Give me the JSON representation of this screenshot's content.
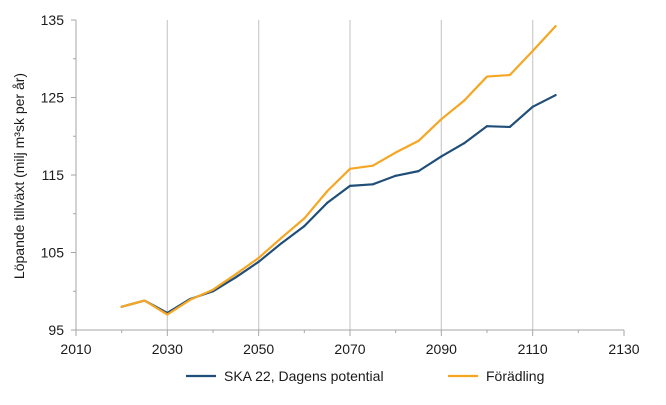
{
  "chart_data": {
    "type": "line",
    "title": "",
    "xlabel": "",
    "ylabel": "Löpande tillväxt (milj m³sk per år)",
    "xlim": [
      2010,
      2130
    ],
    "ylim": [
      95,
      135
    ],
    "x_ticks": [
      2010,
      2030,
      2050,
      2070,
      2090,
      2110,
      2130
    ],
    "x_minor_ticks": [
      2020,
      2040,
      2060,
      2080,
      2100,
      2120
    ],
    "y_ticks": [
      95,
      105,
      115,
      125,
      135
    ],
    "y_minor_ticks": [
      100,
      110,
      120,
      130
    ],
    "x_grid": [
      2030,
      2050,
      2070,
      2090,
      2110
    ],
    "x_tick_labels": [
      "2010",
      "2030",
      "2050",
      "2070",
      "2090",
      "2110",
      "2130"
    ],
    "y_tick_labels": [
      "95",
      "105",
      "115",
      "125",
      "135"
    ],
    "legend_position": "bottom",
    "series": [
      {
        "name": "SKA 22, Dagens potential",
        "color": "#1f4e79",
        "x": [
          2020,
          2025,
          2030,
          2035,
          2040,
          2045,
          2050,
          2055,
          2060,
          2065,
          2070,
          2075,
          2080,
          2085,
          2090,
          2095,
          2100,
          2105,
          2110,
          2115
        ],
        "values": [
          98.0,
          98.8,
          97.2,
          99.0,
          100.0,
          101.8,
          103.8,
          106.2,
          108.4,
          111.4,
          113.6,
          113.8,
          114.9,
          115.5,
          117.4,
          119.1,
          121.3,
          121.2,
          123.8,
          125.3
        ]
      },
      {
        "name": "Förädling",
        "color": "#f5a623",
        "x": [
          2020,
          2025,
          2030,
          2035,
          2040,
          2045,
          2050,
          2055,
          2060,
          2065,
          2070,
          2075,
          2080,
          2085,
          2090,
          2095,
          2100,
          2105,
          2110,
          2115
        ],
        "values": [
          98.0,
          98.8,
          97.0,
          98.9,
          100.2,
          102.2,
          104.3,
          106.9,
          109.4,
          112.9,
          115.8,
          116.2,
          117.9,
          119.4,
          122.2,
          124.6,
          127.7,
          127.9,
          131.0,
          134.2
        ]
      }
    ]
  }
}
